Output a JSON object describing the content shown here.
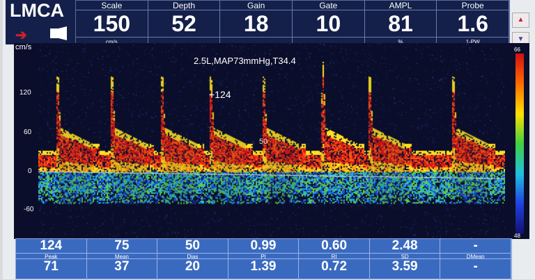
{
  "header": {
    "title": "LMCA",
    "direction_icon": "arrow-right-icon",
    "probe_icon": "probe-icon"
  },
  "params": [
    {
      "label": "Scale",
      "value": "150",
      "unit": "cm/s"
    },
    {
      "label": "Depth",
      "value": "52",
      "unit": ""
    },
    {
      "label": "Gain",
      "value": "18",
      "unit": ""
    },
    {
      "label": "Gate",
      "value": "10",
      "unit": ""
    },
    {
      "label": "AMPL",
      "value": "81",
      "unit": "%"
    },
    {
      "label": "Probe",
      "value": "1.6",
      "unit": "1-PW"
    }
  ],
  "scroll": {
    "up_icon": "triangle-up-icon",
    "down_icon": "triangle-down-icon",
    "up": "▲",
    "down": "▼"
  },
  "plot": {
    "y_unit": "cm/s",
    "y_ticks": [
      "120",
      "60",
      "0",
      "-60"
    ],
    "annotation": "2.5L,MAP73mmHg,T34.4",
    "peak_marker": "+124",
    "dias_marker": "50",
    "colorbar_max": "66",
    "colorbar_min": "48"
  },
  "stats": {
    "top": [
      "124",
      "75",
      "50",
      "0.99",
      "0.60",
      "2.48",
      "-"
    ],
    "names": [
      "Peak",
      "Mean",
      "Dias",
      "PI",
      "RI",
      "SD",
      "DMean"
    ],
    "bottom": [
      "71",
      "37",
      "20",
      "1.39",
      "0.72",
      "3.59",
      "-"
    ]
  }
}
